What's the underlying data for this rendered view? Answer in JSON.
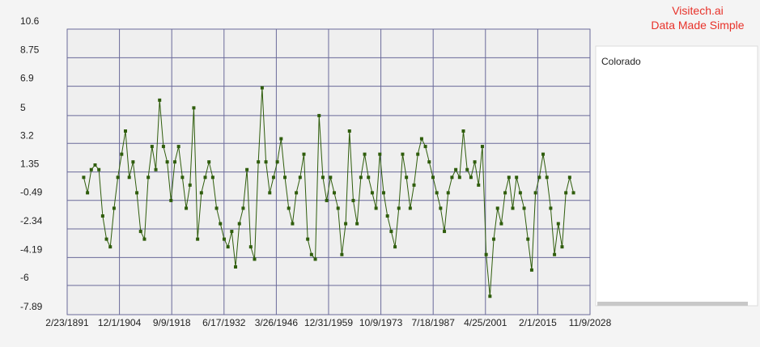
{
  "watermark": {
    "line1": "Visitech.ai",
    "line2": "Data Made Simple"
  },
  "chart_data": {
    "type": "line",
    "x": [
      "7/1/1895",
      "7/1/1896",
      "7/1/1897",
      "7/1/1898",
      "7/1/1899",
      "7/1/1900",
      "7/1/1901",
      "7/1/1902",
      "7/1/1903",
      "7/1/1904",
      "7/1/1905",
      "7/1/1906",
      "7/1/1907",
      "7/1/1908",
      "7/1/1909",
      "7/1/1910",
      "7/1/1911",
      "7/1/1912",
      "7/1/1913",
      "7/1/1914",
      "7/1/1915",
      "7/1/1916",
      "7/1/1917",
      "7/1/1918",
      "7/1/1919",
      "7/1/1920",
      "7/1/1921",
      "7/1/1922",
      "7/1/1923",
      "7/1/1924",
      "7/1/1925",
      "7/1/1926",
      "7/1/1927",
      "7/1/1928",
      "7/1/1929",
      "7/1/1930",
      "7/1/1931",
      "7/1/1932",
      "7/1/1933",
      "7/1/1934",
      "7/1/1935",
      "7/1/1936",
      "7/1/1937",
      "7/1/1938",
      "7/1/1939",
      "7/1/1940",
      "7/1/1941",
      "7/1/1942",
      "7/1/1943",
      "7/1/1944",
      "7/1/1945",
      "7/1/1946",
      "7/1/1947",
      "7/1/1948",
      "7/1/1949",
      "7/1/1950",
      "7/1/1951",
      "7/1/1952",
      "7/1/1953",
      "7/1/1954",
      "7/1/1955",
      "7/1/1956",
      "7/1/1957",
      "7/1/1958",
      "7/1/1959",
      "7/1/1960",
      "7/1/1961",
      "7/1/1962",
      "7/1/1963",
      "7/1/1964",
      "7/1/1965",
      "7/1/1966",
      "7/1/1967",
      "7/1/1968",
      "7/1/1969",
      "7/1/1970",
      "7/1/1971",
      "7/1/1972",
      "7/1/1973",
      "7/1/1974",
      "7/1/1975",
      "7/1/1976",
      "7/1/1977",
      "7/1/1978",
      "7/1/1979",
      "7/1/1980",
      "7/1/1981",
      "7/1/1982",
      "7/1/1983",
      "7/1/1984",
      "7/1/1985",
      "7/1/1986",
      "7/1/1987",
      "7/1/1988",
      "7/1/1989",
      "7/1/1990",
      "7/1/1991",
      "7/1/1992",
      "7/1/1993",
      "7/1/1994",
      "7/1/1995",
      "7/1/1996",
      "7/1/1997",
      "7/1/1998",
      "7/1/1999",
      "7/1/2000",
      "7/1/2001",
      "7/1/2002",
      "7/1/2003",
      "7/1/2004",
      "7/1/2005",
      "7/1/2006",
      "7/1/2007",
      "7/1/2008",
      "7/1/2009",
      "7/1/2010",
      "7/1/2011",
      "7/1/2012",
      "7/1/2013",
      "7/1/2014",
      "7/1/2015",
      "7/1/2016",
      "7/1/2017",
      "7/1/2018",
      "7/1/2019",
      "7/1/2020",
      "7/1/2021",
      "7/1/2022",
      "7/1/2023",
      "7/1/2024"
    ],
    "series": [
      {
        "name": "Colorado",
        "color": "#2f5d0c",
        "values": [
          1.0,
          0.0,
          1.5,
          1.8,
          1.5,
          -1.5,
          -3.0,
          -3.5,
          -1.0,
          1.0,
          2.5,
          4.0,
          1.0,
          2.0,
          0.0,
          -2.5,
          -3.0,
          1.0,
          3.0,
          1.5,
          6.0,
          3.0,
          2.0,
          -0.5,
          2.0,
          3.0,
          1.0,
          -1.0,
          0.5,
          5.5,
          -3.0,
          0.0,
          1.0,
          2.0,
          1.0,
          -1.0,
          -2.0,
          -3.0,
          -3.5,
          -2.5,
          -4.8,
          -2.0,
          -1.0,
          1.5,
          -3.5,
          -4.3,
          2.0,
          6.8,
          2.0,
          0.0,
          1.0,
          2.0,
          3.5,
          1.0,
          -1.0,
          -2.0,
          0.0,
          1.0,
          2.5,
          -3.0,
          -4.0,
          -4.3,
          5.0,
          1.0,
          -0.5,
          1.0,
          0.0,
          -1.0,
          -4.0,
          -2.0,
          4.0,
          -0.5,
          -2.0,
          1.0,
          2.5,
          1.0,
          0.0,
          -1.0,
          2.5,
          0.0,
          -1.5,
          -2.5,
          -3.5,
          -1.0,
          2.5,
          1.0,
          -1.0,
          0.5,
          2.5,
          3.5,
          3.0,
          2.0,
          1.0,
          0.0,
          -1.0,
          -2.5,
          0.0,
          1.0,
          1.5,
          1.0,
          4.0,
          1.5,
          1.0,
          2.0,
          0.5,
          3.0,
          -4.0,
          -6.7,
          -3.0,
          -1.0,
          -2.0,
          0.0,
          1.0,
          -1.0,
          1.0,
          0.0,
          -1.0,
          -3.0,
          -5.0,
          0.0,
          1.0,
          2.5,
          1.0,
          -1.0,
          -4.0,
          -2.0,
          -3.5,
          0.0,
          1.0,
          0.0
        ]
      }
    ],
    "xlim": [
      "2/23/1891",
      "11/9/2028"
    ],
    "xticks": [
      "2/23/1891",
      "12/1/1904",
      "9/9/1918",
      "6/17/1932",
      "3/26/1946",
      "12/31/1959",
      "10/9/1973",
      "7/18/1987",
      "4/25/2001",
      "2/1/2015",
      "11/9/2028"
    ],
    "ylim": [
      -7.89,
      10.6
    ],
    "yticks": [
      10.6,
      8.75,
      6.9,
      5,
      3.2,
      1.35,
      -0.49,
      -2.34,
      -4.19,
      -6,
      -7.89
    ],
    "grid": true
  }
}
